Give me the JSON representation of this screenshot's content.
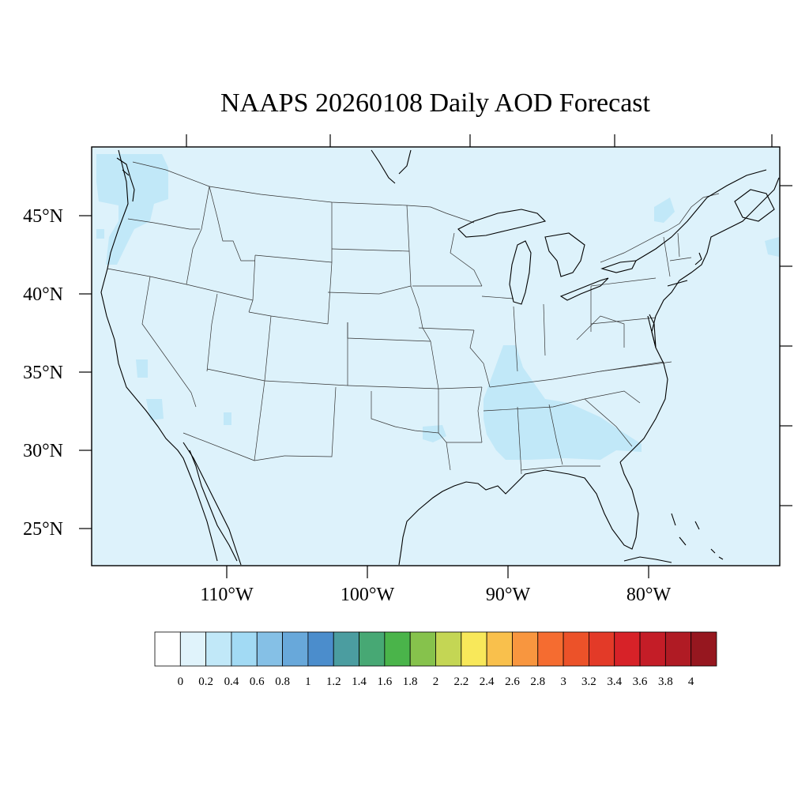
{
  "title": "NAAPS 20260108 Daily AOD Forecast",
  "lat_labels": [
    "45°N",
    "40°N",
    "35°N",
    "30°N",
    "25°N"
  ],
  "lon_labels": [
    "110°W",
    "100°W",
    "90°W",
    "80°W"
  ],
  "colorbar": {
    "labels": [
      "0",
      "0.2",
      "0.4",
      "0.6",
      "0.8",
      "1",
      "1.2",
      "1.4",
      "1.6",
      "1.8",
      "2",
      "2.2",
      "2.4",
      "2.6",
      "2.8",
      "3",
      "3.2",
      "3.4",
      "3.6",
      "3.8",
      "4"
    ],
    "colors": [
      "#ffffff",
      "#e0f3fb",
      "#c1e8f8",
      "#a2daf4",
      "#85c0e6",
      "#68a8da",
      "#4b8dcc",
      "#4b9da0",
      "#47a874",
      "#4ab44a",
      "#86c24c",
      "#c4d654",
      "#f8e85a",
      "#f9c04c",
      "#f8963f",
      "#f56c30",
      "#ec5229",
      "#e33a28",
      "#d72228",
      "#c41d27",
      "#b01b24",
      "#96171f"
    ]
  },
  "map": {
    "background_color": "#ddf2fb",
    "enhanced_color": "#c1e8f8"
  }
}
